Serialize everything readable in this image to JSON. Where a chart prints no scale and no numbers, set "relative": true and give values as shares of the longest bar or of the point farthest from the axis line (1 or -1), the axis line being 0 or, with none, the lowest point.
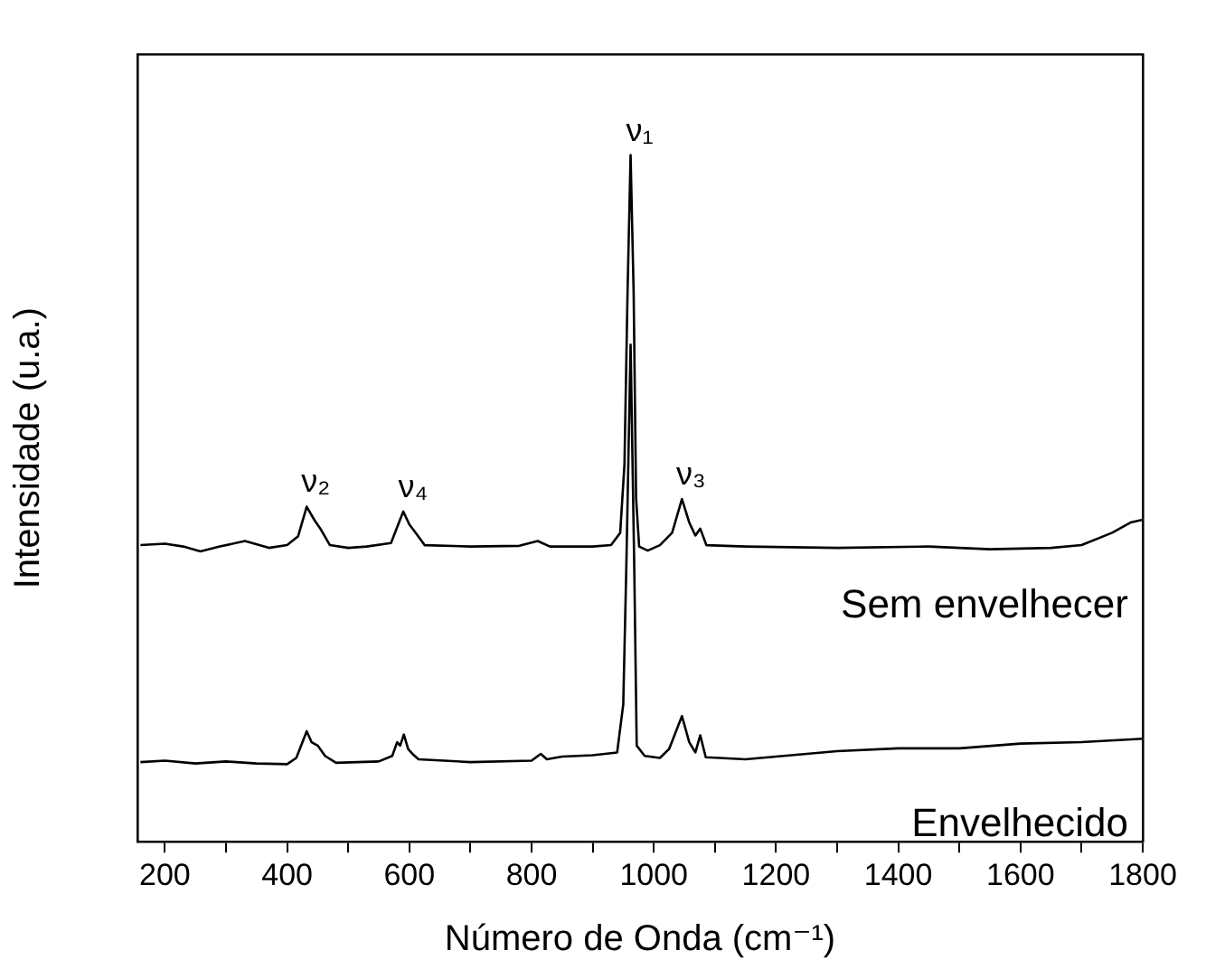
{
  "chart_data": {
    "type": "line",
    "relative": true,
    "xlabel": "Número de Onda (cm⁻¹)",
    "ylabel": "Intensidade (u.a.)",
    "xlim": [
      155,
      1800
    ],
    "xticks": [
      200,
      {
        "value": 300,
        "label": null
      },
      400,
      {
        "value": 500,
        "label": null
      },
      600,
      {
        "value": 700,
        "label": null
      },
      800,
      {
        "value": 900,
        "label": null
      },
      1000,
      {
        "value": 1100,
        "label": null
      },
      1200,
      {
        "value": 1300,
        "label": null
      },
      1400,
      {
        "value": 1500,
        "label": null
      },
      1600,
      {
        "value": 1700,
        "label": null
      },
      1800
    ],
    "grid": false,
    "legend": false,
    "marker": "none",
    "line_style": "solid",
    "tick_labels": "x",
    "annotations": [
      {
        "text": "ν₁",
        "x": 962,
        "y": 1.0
      },
      {
        "text": "ν₂",
        "x": 432,
        "y": 0.488
      },
      {
        "text": "ν₄",
        "x": 591,
        "y": 0.481
      },
      {
        "text": "ν₃",
        "x": 1046,
        "y": 0.499
      }
    ],
    "series": [
      {
        "name": "Sem envelhecer",
        "color": "#000000",
        "x": [
          160,
          200,
          230,
          258,
          290,
          331,
          370,
          400,
          418,
          432,
          445,
          455,
          470,
          500,
          530,
          570,
          580,
          590,
          600,
          612,
          625,
          700,
          780,
          810,
          830,
          900,
          930,
          945,
          952,
          957,
          962,
          967,
          971,
          976,
          990,
          1010,
          1030,
          1046,
          1058,
          1068,
          1076,
          1086,
          1150,
          1300,
          1450,
          1550,
          1650,
          1700,
          1750,
          1780,
          1800
        ],
        "values": [
          0.432,
          0.434,
          0.43,
          0.423,
          0.43,
          0.438,
          0.428,
          0.432,
          0.445,
          0.488,
          0.468,
          0.455,
          0.432,
          0.428,
          0.43,
          0.435,
          0.458,
          0.481,
          0.462,
          0.448,
          0.432,
          0.43,
          0.431,
          0.438,
          0.43,
          0.43,
          0.432,
          0.45,
          0.55,
          0.8,
          1.0,
          0.8,
          0.5,
          0.43,
          0.424,
          0.432,
          0.45,
          0.499,
          0.465,
          0.446,
          0.456,
          0.432,
          0.43,
          0.428,
          0.43,
          0.426,
          0.428,
          0.432,
          0.45,
          0.465,
          0.469
        ]
      },
      {
        "name": "Envelhecido",
        "color": "#000000",
        "x": [
          160,
          200,
          250,
          300,
          350,
          400,
          415,
          432,
          440,
          450,
          462,
          480,
          550,
          572,
          580,
          585,
          591,
          598,
          605,
          615,
          700,
          800,
          815,
          825,
          850,
          900,
          940,
          950,
          955,
          962,
          968,
          972,
          985,
          1010,
          1025,
          1046,
          1058,
          1068,
          1076,
          1085,
          1150,
          1200,
          1300,
          1400,
          1500,
          1600,
          1700,
          1800
        ],
        "values": [
          0.116,
          0.118,
          0.114,
          0.117,
          0.114,
          0.113,
          0.122,
          0.161,
          0.145,
          0.14,
          0.125,
          0.115,
          0.117,
          0.125,
          0.145,
          0.14,
          0.156,
          0.135,
          0.128,
          0.12,
          0.116,
          0.118,
          0.128,
          0.12,
          0.124,
          0.126,
          0.13,
          0.2,
          0.4,
          0.724,
          0.4,
          0.14,
          0.125,
          0.122,
          0.135,
          0.183,
          0.145,
          0.13,
          0.155,
          0.123,
          0.12,
          0.124,
          0.132,
          0.136,
          0.136,
          0.143,
          0.145,
          0.15
        ]
      }
    ]
  }
}
